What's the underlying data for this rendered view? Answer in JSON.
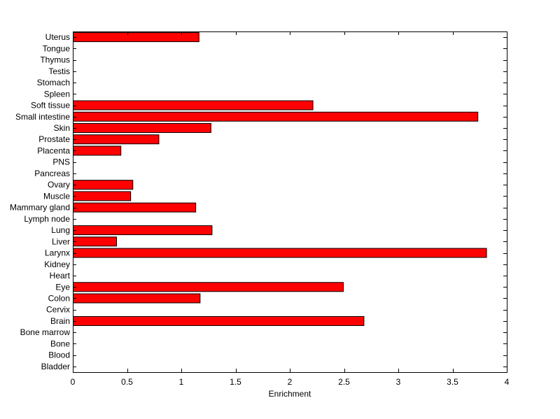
{
  "chart_data": {
    "type": "bar",
    "orientation": "horizontal",
    "xlabel": "Enrichment",
    "ylabel": "",
    "title": "",
    "xlim": [
      0,
      4
    ],
    "xticks": [
      "0",
      "0.5",
      "1",
      "1.5",
      "2",
      "2.5",
      "3",
      "3.5",
      "4"
    ],
    "bar_color": "#ff0000",
    "grid": false,
    "categories": [
      "Uterus",
      "Tongue",
      "Thymus",
      "Testis",
      "Stomach",
      "Spleen",
      "Soft tissue",
      "Small intestine",
      "Skin",
      "Prostate",
      "Placenta",
      "PNS",
      "Pancreas",
      "Ovary",
      "Muscle",
      "Mammary gland",
      "Lymph node",
      "Lung",
      "Liver",
      "Larynx",
      "Kidney",
      "Heart",
      "Eye",
      "Colon",
      "Cervix",
      "Brain",
      "Bone marrow",
      "Bone",
      "Blood",
      "Bladder"
    ],
    "values": [
      1.16,
      0,
      0,
      0,
      0,
      0,
      2.21,
      3.73,
      1.27,
      0.79,
      0.44,
      0,
      0,
      0.55,
      0.53,
      1.13,
      0,
      1.28,
      0.4,
      3.81,
      0,
      0,
      2.49,
      1.17,
      0,
      2.68,
      0,
      0,
      0,
      0
    ]
  }
}
